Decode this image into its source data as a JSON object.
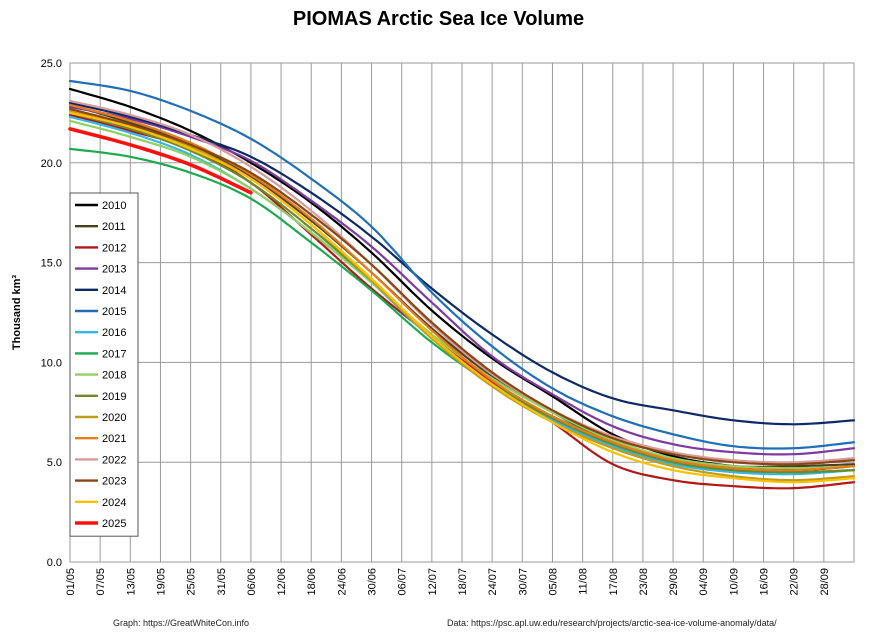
{
  "chart_data": {
    "type": "line",
    "title": "PIOMAS Arctic Sea Ice Volume",
    "ylabel": "Thousand km³",
    "xlabel": "",
    "ylim": [
      0,
      25
    ],
    "yticks": [
      "0.0",
      "5.0",
      "10.0",
      "15.0",
      "20.0",
      "25.0"
    ],
    "x_tick_labels": [
      "01/05",
      "07/05",
      "13/05",
      "19/05",
      "25/05",
      "31/05",
      "06/06",
      "12/06",
      "18/06",
      "24/06",
      "30/06",
      "06/07",
      "12/07",
      "18/07",
      "24/07",
      "30/07",
      "05/08",
      "11/08",
      "17/08",
      "23/08",
      "29/08",
      "04/09",
      "10/09",
      "16/09",
      "22/09",
      "28/09"
    ],
    "x_day_range": [
      0,
      156
    ],
    "x_tick_interval_days": 6,
    "grid": true,
    "legend_position": "left",
    "anchor_days": [
      0,
      12,
      24,
      36,
      48,
      60,
      72,
      84,
      96,
      108,
      120,
      132,
      144,
      156
    ],
    "series": [
      {
        "name": "2010",
        "color": "#000000",
        "width": 2.2,
        "values": [
          23.7,
          22.8,
          21.6,
          20.0,
          18.0,
          15.5,
          12.6,
          10.2,
          8.3,
          6.4,
          5.3,
          4.8,
          4.6,
          4.8
        ]
      },
      {
        "name": "2011",
        "color": "#4a4020",
        "width": 2.2,
        "values": [
          22.9,
          22.0,
          20.9,
          19.3,
          17.1,
          14.5,
          11.7,
          9.3,
          7.5,
          6.0,
          5.2,
          4.8,
          4.8,
          4.9
        ]
      },
      {
        "name": "2012",
        "color": "#b01818",
        "width": 2.2,
        "values": [
          22.4,
          21.6,
          20.7,
          19.0,
          16.4,
          13.7,
          11.3,
          9.0,
          7.0,
          4.9,
          4.1,
          3.8,
          3.7,
          4.0
        ]
      },
      {
        "name": "2013",
        "color": "#7d3aa0",
        "width": 2.2,
        "values": [
          22.8,
          22.2,
          21.3,
          20.1,
          18.1,
          15.8,
          13.0,
          10.3,
          8.4,
          6.8,
          5.9,
          5.5,
          5.4,
          5.7
        ]
      },
      {
        "name": "2014",
        "color": "#0d2a66",
        "width": 2.2,
        "values": [
          23.0,
          22.3,
          21.4,
          20.3,
          18.5,
          16.3,
          13.7,
          11.4,
          9.5,
          8.2,
          7.6,
          7.1,
          6.9,
          7.1
        ]
      },
      {
        "name": "2015",
        "color": "#1f6fb8",
        "width": 2.2,
        "values": [
          24.1,
          23.6,
          22.6,
          21.2,
          19.2,
          16.8,
          13.5,
          10.8,
          8.7,
          7.3,
          6.4,
          5.8,
          5.7,
          6.0
        ]
      },
      {
        "name": "2016",
        "color": "#33b8e8",
        "width": 2.2,
        "values": [
          22.3,
          21.5,
          20.4,
          18.7,
          16.5,
          14.0,
          11.2,
          8.9,
          7.1,
          5.8,
          4.9,
          4.5,
          4.4,
          4.6
        ]
      },
      {
        "name": "2017",
        "color": "#1daa4f",
        "width": 2.2,
        "values": [
          20.7,
          20.3,
          19.5,
          18.2,
          16.0,
          13.6,
          11.0,
          8.9,
          7.3,
          6.0,
          5.0,
          4.6,
          4.5,
          4.6
        ]
      },
      {
        "name": "2018",
        "color": "#8fd060",
        "width": 2.2,
        "values": [
          22.1,
          21.3,
          20.3,
          18.7,
          16.5,
          14.0,
          11.4,
          9.2,
          7.5,
          6.1,
          5.2,
          4.8,
          4.7,
          4.8
        ]
      },
      {
        "name": "2019",
        "color": "#6d8a2a",
        "width": 2.2,
        "values": [
          22.5,
          21.7,
          20.6,
          19.0,
          16.7,
          14.1,
          11.3,
          8.9,
          7.2,
          5.9,
          5.0,
          4.6,
          4.5,
          4.6
        ]
      },
      {
        "name": "2020",
        "color": "#c09a18",
        "width": 2.2,
        "values": [
          22.6,
          21.8,
          20.8,
          19.2,
          16.9,
          14.1,
          11.2,
          8.8,
          7.0,
          5.7,
          4.8,
          4.3,
          4.1,
          4.3
        ]
      },
      {
        "name": "2021",
        "color": "#e87c1a",
        "width": 2.2,
        "values": [
          22.9,
          22.1,
          21.0,
          19.4,
          17.2,
          14.5,
          11.6,
          9.1,
          7.3,
          6.0,
          5.1,
          4.7,
          4.6,
          4.8
        ]
      },
      {
        "name": "2022",
        "color": "#d99a9a",
        "width": 2.2,
        "values": [
          23.1,
          22.4,
          21.4,
          19.8,
          17.6,
          14.9,
          11.9,
          9.4,
          7.6,
          6.3,
          5.5,
          5.1,
          5.0,
          5.2
        ]
      },
      {
        "name": "2023",
        "color": "#8a4515",
        "width": 2.2,
        "values": [
          22.7,
          21.9,
          20.9,
          19.5,
          17.4,
          14.9,
          12.0,
          9.5,
          7.6,
          6.2,
          5.4,
          5.0,
          4.9,
          5.1
        ]
      },
      {
        "name": "2024",
        "color": "#ffc000",
        "width": 2.2,
        "values": [
          22.5,
          21.8,
          20.7,
          19.2,
          16.9,
          14.2,
          11.3,
          8.9,
          7.0,
          5.5,
          4.6,
          4.2,
          4.0,
          4.2
        ]
      },
      {
        "name": "2025",
        "color": "#ff1010",
        "width": 3.6,
        "values": [
          21.7,
          20.9,
          19.9,
          18.5
        ]
      }
    ]
  },
  "credits": {
    "graph": "Graph: https://GreatWhiteCon.info",
    "data": "Data:  https://psc.apl.uw.edu/research/projects/arctic-sea-ice-volume-anomaly/data/"
  }
}
